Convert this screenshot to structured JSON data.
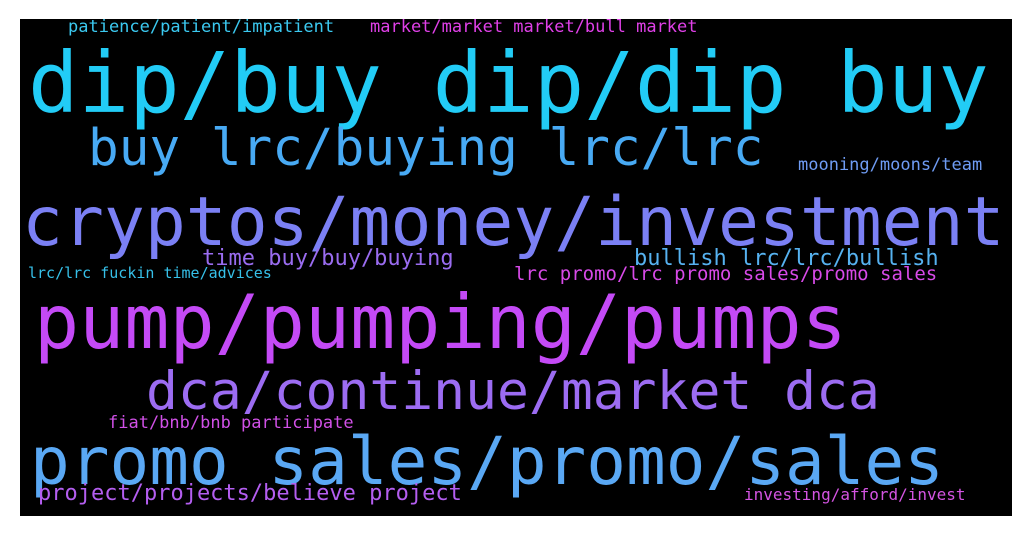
{
  "colors": {
    "background": "#000000",
    "page": "#ffffff"
  },
  "words": [
    {
      "text": "patience/patient/impatient",
      "color": "#3bc9f0"
    },
    {
      "text": "market/market market/bull market",
      "color": "#e040e8"
    },
    {
      "text": "dip/buy dip/dip buy",
      "color": "#22ccf6"
    },
    {
      "text": "buy lrc/buying lrc/lrc",
      "color": "#48aaf4"
    },
    {
      "text": "mooning/moons/team",
      "color": "#6f9cf4"
    },
    {
      "text": "cryptos/money/investment",
      "color": "#7b80f4"
    },
    {
      "text": "time buy/buy/buying",
      "color": "#9a6cf0"
    },
    {
      "text": "bullish lrc/lrc/bullish",
      "color": "#56b2f0"
    },
    {
      "text": "lrc/lrc fuckin time/advices",
      "color": "#36c0e8"
    },
    {
      "text": "lrc promo/lrc promo sales/promo sales",
      "color": "#d84ae8"
    },
    {
      "text": "pump/pumping/pumps",
      "color": "#c44af6"
    },
    {
      "text": "dca/continue/market dca",
      "color": "#9c6cf2"
    },
    {
      "text": "fiat/bnb/bnb participate",
      "color": "#d050e6"
    },
    {
      "text": "promo sales/promo/sales",
      "color": "#5aa8f4"
    },
    {
      "text": "project/projects/believe project",
      "color": "#b45ef0"
    },
    {
      "text": "investing/afford/invest",
      "color": "#d454e2"
    }
  ]
}
